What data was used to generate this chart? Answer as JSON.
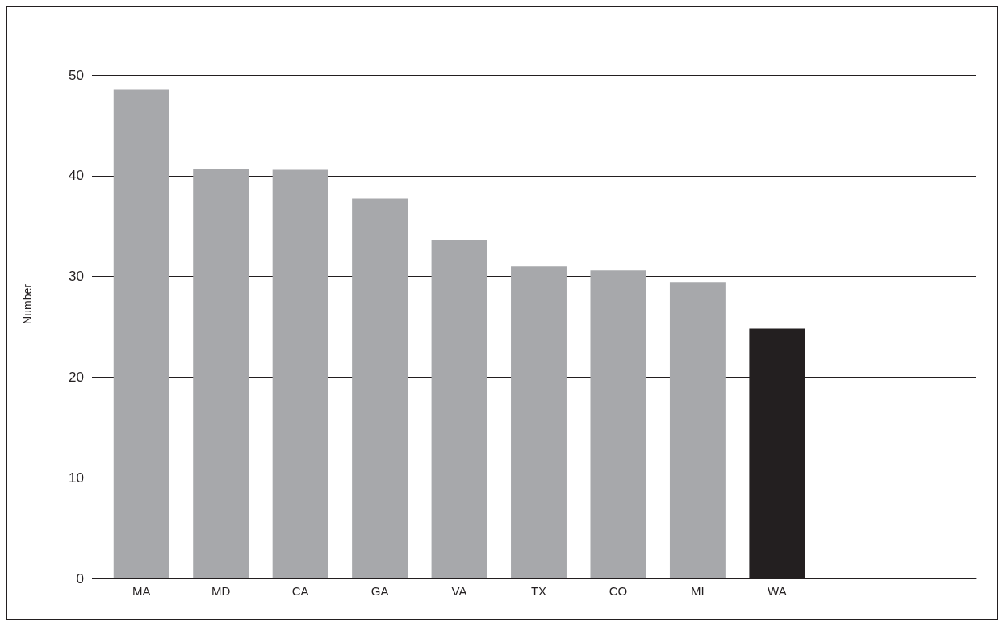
{
  "chart_data": {
    "type": "bar",
    "ylabel": "Number",
    "categories": [
      "MA",
      "MD",
      "CA",
      "GA",
      "VA",
      "TX",
      "CO",
      "MI",
      "WA",
      null,
      null
    ],
    "values": [
      48.6,
      40.7,
      40.6,
      37.7,
      33.6,
      31.0,
      30.6,
      29.4,
      24.8,
      null,
      null
    ],
    "colors": [
      "#a7a8ab",
      "#a7a8ab",
      "#a7a8ab",
      "#a7a8ab",
      "#a7a8ab",
      "#a7a8ab",
      "#a7a8ab",
      "#a7a8ab",
      "#231f20",
      "#a7a8ab",
      "#a7a8ab"
    ],
    "ylim": [
      0,
      54.5
    ],
    "yticks": [
      0,
      10,
      20,
      30,
      40,
      50
    ],
    "grid": "y"
  }
}
